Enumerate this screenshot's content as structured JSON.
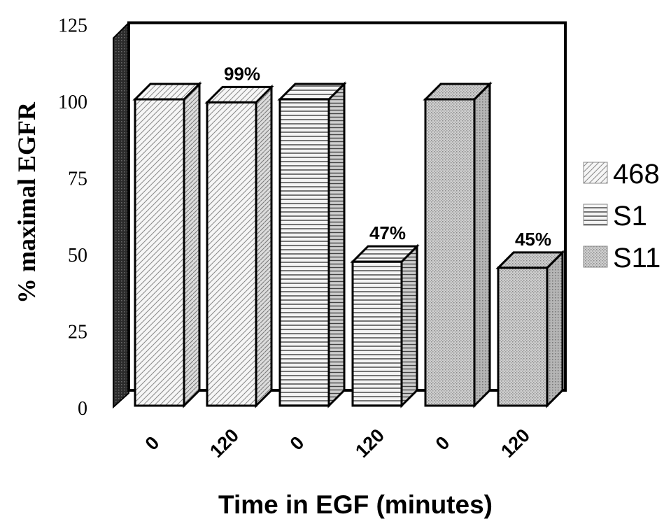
{
  "chart_data": {
    "type": "bar",
    "title": "",
    "xlabel": "Time in EGF (minutes)",
    "ylabel": "% maximal EGFR",
    "ylim": [
      0,
      125
    ],
    "yticks": [
      "0",
      "25",
      "50",
      "75",
      "100",
      "125"
    ],
    "grid": false,
    "legend_position": "right",
    "bars": [
      {
        "series": "468",
        "x": "0",
        "value": 100,
        "label": ""
      },
      {
        "series": "468",
        "x": "120",
        "value": 99,
        "label": "99%"
      },
      {
        "series": "S1",
        "x": "0",
        "value": 100,
        "label": ""
      },
      {
        "series": "S1",
        "x": "120",
        "value": 47,
        "label": "47%"
      },
      {
        "series": "S11",
        "x": "0",
        "value": 100,
        "label": ""
      },
      {
        "series": "S11",
        "x": "120",
        "value": 45,
        "label": "45%"
      }
    ],
    "legend": [
      {
        "name": "468",
        "pattern": "diagonal"
      },
      {
        "name": "S1",
        "pattern": "horizontal"
      },
      {
        "name": "S11",
        "pattern": "dots"
      }
    ]
  }
}
